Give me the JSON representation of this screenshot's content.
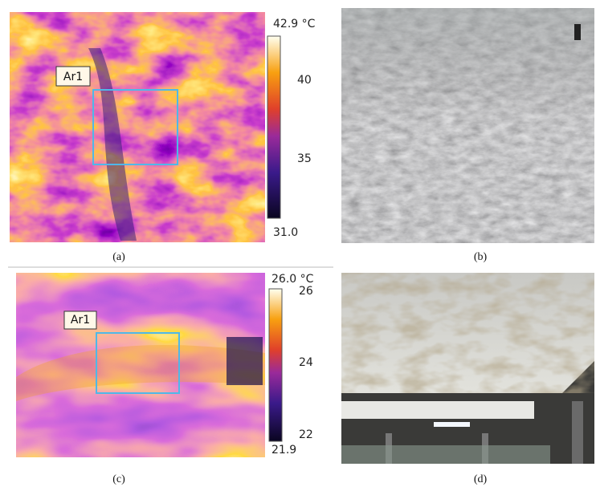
{
  "panels": [
    {
      "caption": "(a)",
      "roi_label": "Ar1",
      "scale": {
        "max_label": "42.9 °C",
        "ticks": [
          40,
          35
        ],
        "min_label": "31.0"
      }
    },
    {
      "caption": "(b)"
    },
    {
      "caption": "(c)",
      "roi_label": "Ar1",
      "scale": {
        "max_label": "26.0 °C",
        "ticks": [
          26,
          24,
          22
        ],
        "min_label": "21.9"
      }
    },
    {
      "caption": "(d)"
    }
  ]
}
